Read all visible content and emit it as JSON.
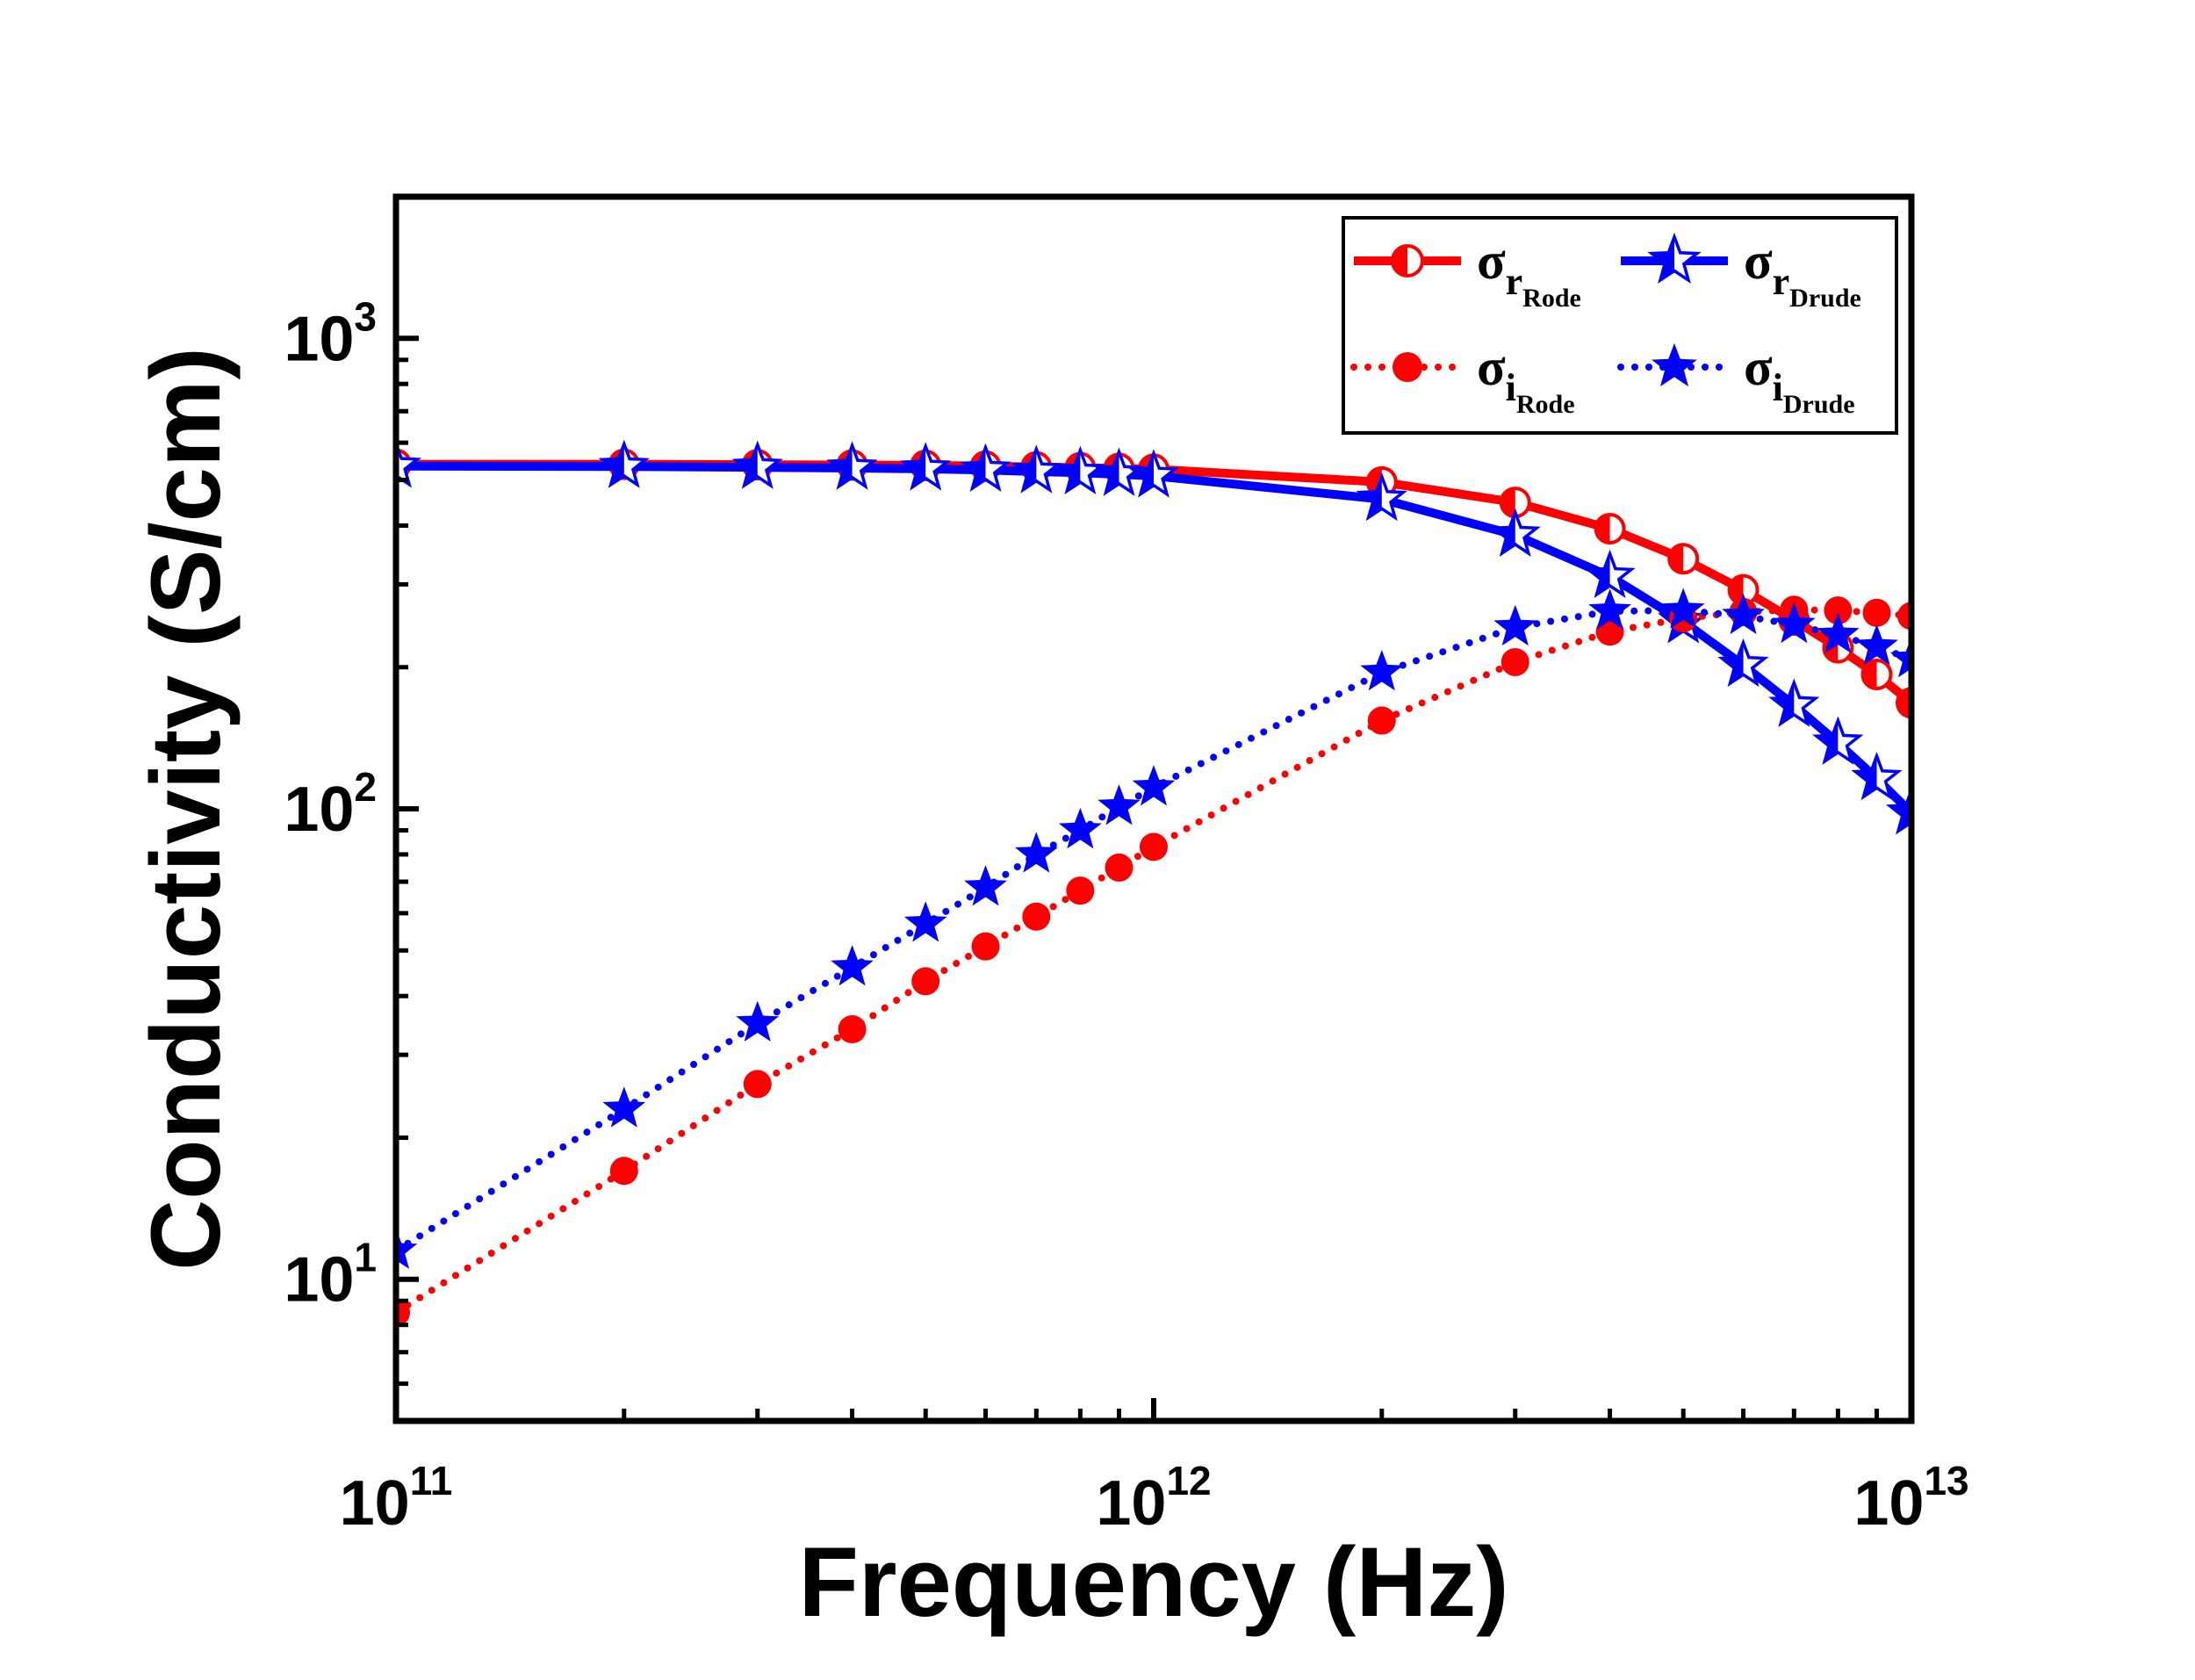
{
  "chart_data": {
    "type": "line",
    "xscale": "log",
    "yscale": "log",
    "xlabel": "Frequency (Hz)",
    "ylabel": "Conductivity (S/cm)",
    "xlim": [
      100000000000.0,
      10000000000000.0
    ],
    "ylim": [
      5,
      2000
    ],
    "xticks": [
      {
        "value": 100000000000.0,
        "base": "10",
        "exp": "11"
      },
      {
        "value": 1000000000000.0,
        "base": "10",
        "exp": "12"
      },
      {
        "value": 10000000000000.0,
        "base": "10",
        "exp": "13"
      }
    ],
    "yticks": [
      {
        "value": 10,
        "base": "10",
        "exp": "1"
      },
      {
        "value": 100,
        "base": "10",
        "exp": "2"
      },
      {
        "value": 1000,
        "base": "10",
        "exp": "3"
      }
    ],
    "legend_position": "top-right",
    "series": [
      {
        "id": "sr-rode",
        "legend": {
          "sym": "σ",
          "sub": "r",
          "subsub": "Rode"
        },
        "color": "#ff0000",
        "line": "solid",
        "marker": "half-circle",
        "x": [
          100000000000.0,
          200000000000.0,
          300000000000.0,
          400000000000.0,
          500000000000.0,
          600000000000.0,
          700000000000.0,
          800000000000.0,
          900000000000.0,
          1000000000000.0,
          2000000000000.0,
          3000000000000.0,
          4000000000000.0,
          5000000000000.0,
          6000000000000.0,
          7000000000000.0,
          8000000000000.0,
          9000000000000.0,
          10000000000000.0
        ],
        "y": [
          540,
          540,
          539,
          538,
          537,
          535,
          533,
          531,
          529,
          527,
          495,
          448,
          394,
          340,
          292,
          252,
          220,
          193,
          168
        ]
      },
      {
        "id": "sr-drude",
        "legend": {
          "sym": "σ",
          "sub": "r",
          "subsub": "Drude"
        },
        "color": "#0000ff",
        "line": "solid",
        "marker": "half-star",
        "x": [
          100000000000.0,
          200000000000.0,
          300000000000.0,
          400000000000.0,
          500000000000.0,
          600000000000.0,
          700000000000.0,
          800000000000.0,
          900000000000.0,
          1000000000000.0,
          2000000000000.0,
          3000000000000.0,
          4000000000000.0,
          5000000000000.0,
          6000000000000.0,
          7000000000000.0,
          8000000000000.0,
          9000000000000.0,
          10000000000000.0
        ],
        "y": [
          535,
          534,
          532,
          530,
          528,
          525,
          521,
          518,
          514,
          510,
          455,
          382,
          312,
          250,
          202,
          166,
          138,
          116,
          98
        ]
      },
      {
        "id": "si-rode",
        "legend": {
          "sym": "σ",
          "sub": "i",
          "subsub": "Rode"
        },
        "color": "#ff0000",
        "line": "dotted",
        "marker": "circle",
        "x": [
          100000000000.0,
          200000000000.0,
          300000000000.0,
          400000000000.0,
          500000000000.0,
          600000000000.0,
          700000000000.0,
          800000000000.0,
          900000000000.0,
          1000000000000.0,
          2000000000000.0,
          3000000000000.0,
          4000000000000.0,
          5000000000000.0,
          6000000000000.0,
          7000000000000.0,
          8000000000000.0,
          9000000000000.0,
          10000000000000.0
        ],
        "y": [
          8.5,
          17,
          26,
          34,
          43,
          51,
          59,
          67,
          75,
          83,
          154,
          205,
          238,
          254,
          262,
          265,
          264,
          261,
          257
        ]
      },
      {
        "id": "si-drude",
        "legend": {
          "sym": "σ",
          "sub": "i",
          "subsub": "Drude"
        },
        "color": "#0000ff",
        "line": "dotted",
        "marker": "star",
        "x": [
          100000000000.0,
          200000000000.0,
          300000000000.0,
          400000000000.0,
          500000000000.0,
          600000000000.0,
          700000000000.0,
          800000000000.0,
          900000000000.0,
          1000000000000.0,
          2000000000000.0,
          3000000000000.0,
          4000000000000.0,
          5000000000000.0,
          6000000000000.0,
          7000000000000.0,
          8000000000000.0,
          9000000000000.0,
          10000000000000.0
        ],
        "y": [
          11.5,
          23,
          35,
          46,
          57,
          68,
          80,
          90,
          101,
          111,
          195,
          243,
          263,
          264,
          257,
          246,
          234,
          221,
          208
        ]
      }
    ]
  }
}
